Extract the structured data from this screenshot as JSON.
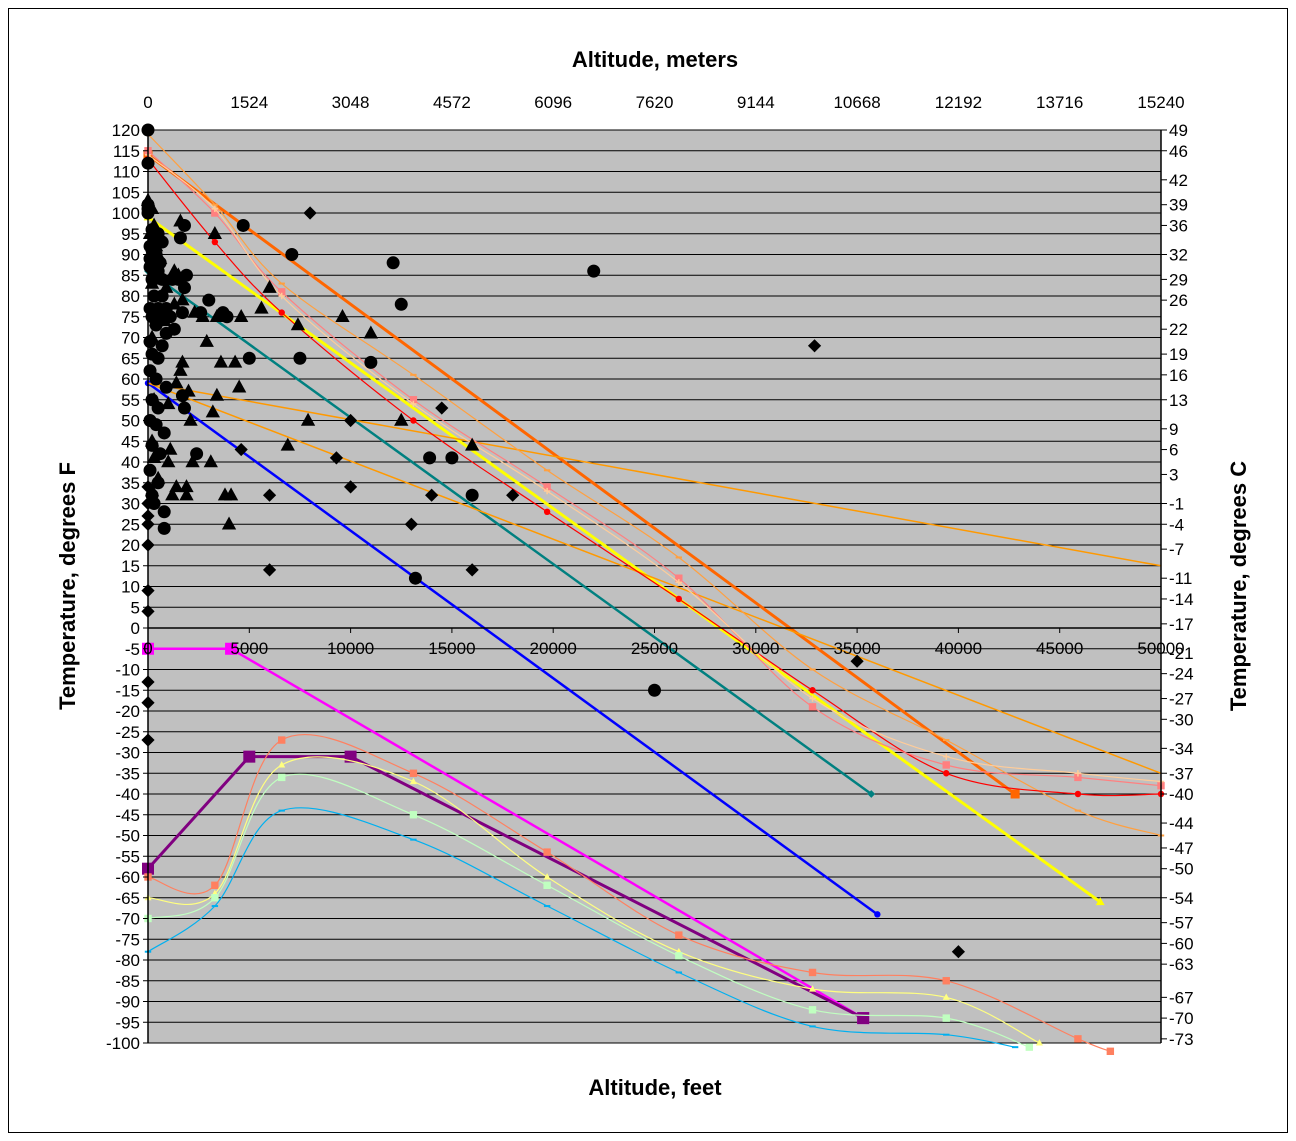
{
  "chart_data": {
    "type": "scatter",
    "title": "",
    "xlabel": "Altitude, feet",
    "x2label": "Altitude, meters",
    "ylabel": "Temperature, degrees F",
    "y2label": "Temperature, degrees C",
    "xlim": [
      0,
      50000
    ],
    "ylim": [
      -100,
      120
    ],
    "grid": true,
    "background": "#c0c0c0",
    "x_ticks": [
      "0",
      "5000",
      "10000",
      "15000",
      "20000",
      "25000",
      "30000",
      "35000",
      "40000",
      "45000",
      "50000"
    ],
    "x2_ticks": [
      "0",
      "1524",
      "3048",
      "4572",
      "6096",
      "7620",
      "9144",
      "10668",
      "12192",
      "13716",
      "15240"
    ],
    "y_ticks": [
      "120",
      "115",
      "110",
      "105",
      "100",
      "95",
      "90",
      "85",
      "80",
      "75",
      "70",
      "65",
      "60",
      "55",
      "50",
      "45",
      "40",
      "35",
      "30",
      "25",
      "20",
      "15",
      "10",
      "5",
      "0",
      "-5",
      "-10",
      "-15",
      "-20",
      "-25",
      "-30",
      "-35",
      "-40",
      "-45",
      "-50",
      "-55",
      "-60",
      "-65",
      "-70",
      "-75",
      "-80",
      "-85",
      "-90",
      "-95",
      "-100"
    ],
    "y2_ticks": [
      {
        "label": "49",
        "f": 120
      },
      {
        "label": "46",
        "f": 115
      },
      {
        "label": "42",
        "f": 108
      },
      {
        "label": "39",
        "f": 102
      },
      {
        "label": "36",
        "f": 97
      },
      {
        "label": "32",
        "f": 90
      },
      {
        "label": "29",
        "f": 84
      },
      {
        "label": "26",
        "f": 79
      },
      {
        "label": "22",
        "f": 72
      },
      {
        "label": "19",
        "f": 66
      },
      {
        "label": "16",
        "f": 61
      },
      {
        "label": "13",
        "f": 55
      },
      {
        "label": "9",
        "f": 48
      },
      {
        "label": "6",
        "f": 43
      },
      {
        "label": "3",
        "f": 37
      },
      {
        "label": "-1",
        "f": 30
      },
      {
        "label": "-4",
        "f": 25
      },
      {
        "label": "-7",
        "f": 19
      },
      {
        "label": "-11",
        "f": 12
      },
      {
        "label": "-14",
        "f": 7
      },
      {
        "label": "-17",
        "f": 1
      },
      {
        "label": "-21",
        "f": -6
      },
      {
        "label": "-24",
        "f": -11
      },
      {
        "label": "-27",
        "f": -17
      },
      {
        "label": "-30",
        "f": -22
      },
      {
        "label": "-34",
        "f": -29
      },
      {
        "label": "-37",
        "f": -35
      },
      {
        "label": "-40",
        "f": -40
      },
      {
        "label": "-44",
        "f": -47
      },
      {
        "label": "-47",
        "f": -53
      },
      {
        "label": "-50",
        "f": -58
      },
      {
        "label": "-54",
        "f": -65
      },
      {
        "label": "-57",
        "f": -71
      },
      {
        "label": "-60",
        "f": -76
      },
      {
        "label": "-63",
        "f": -81
      },
      {
        "label": "-67",
        "f": -89
      },
      {
        "label": "-70",
        "f": -94
      },
      {
        "label": "-73",
        "f": -99
      }
    ],
    "series": [
      {
        "color": "#ff6600",
        "width": 3,
        "marker": "square",
        "smooth": false,
        "x": [
          0,
          42800
        ],
        "y": [
          114,
          -40
        ]
      },
      {
        "color": "#ffff00",
        "width": 3,
        "marker": "triangle",
        "smooth": false,
        "x": [
          0,
          47000
        ],
        "y": [
          99,
          -66
        ]
      },
      {
        "color": "#008080",
        "width": 2.5,
        "marker": "diamond",
        "smooth": false,
        "x": [
          0,
          35700
        ],
        "y": [
          86,
          -40
        ]
      },
      {
        "color": "#0000ff",
        "width": 2.5,
        "marker": "circle",
        "smooth": false,
        "x": [
          0,
          36000
        ],
        "y": [
          59,
          -69
        ]
      },
      {
        "color": "#ff00ff",
        "width": 2.5,
        "marker": "square",
        "smooth": false,
        "x": [
          0,
          4100,
          35300
        ],
        "y": [
          -5,
          -5,
          -94
        ]
      },
      {
        "color": "#800080",
        "width": 3,
        "marker": "square",
        "smooth": false,
        "x": [
          0,
          5000,
          10000,
          35300
        ],
        "y": [
          -58,
          -31,
          -31,
          -94
        ]
      },
      {
        "color": "#ff9900",
        "width": 1.5,
        "marker": "none",
        "smooth": false,
        "x": [
          0,
          50000
        ],
        "y": [
          59,
          -35
        ]
      },
      {
        "color": "#ff9900",
        "width": 1.5,
        "marker": "none",
        "smooth": false,
        "x": [
          0,
          50000
        ],
        "y": [
          59,
          15
        ]
      },
      {
        "color": "#ffa040",
        "width": 1.2,
        "marker": "tick",
        "smooth": true,
        "x": [
          0,
          3300,
          6600,
          13100,
          19700,
          26200,
          32800,
          39400,
          45900,
          50000
        ],
        "y": [
          119,
          102,
          83,
          61,
          38,
          17,
          -10,
          -27,
          -44,
          -50
        ]
      },
      {
        "color": "#ff0000",
        "width": 1.2,
        "marker": "circle",
        "smooth": true,
        "x": [
          0,
          3300,
          6600,
          13100,
          19700,
          26200,
          32800,
          39400,
          45900,
          50000
        ],
        "y": [
          113,
          93,
          76,
          50,
          28,
          7,
          -15,
          -35,
          -40,
          -40
        ]
      },
      {
        "color": "#ff8080",
        "width": 1.2,
        "marker": "square",
        "smooth": true,
        "x": [
          0,
          3300,
          6600,
          13100,
          19700,
          26200,
          32800,
          39400,
          45900,
          50000
        ],
        "y": [
          115,
          100,
          81,
          55,
          34,
          12,
          -19,
          -33,
          -36,
          -38
        ]
      },
      {
        "color": "#ffcc99",
        "width": 1.2,
        "marker": "cross",
        "smooth": true,
        "x": [
          0,
          3300,
          6600,
          13100,
          19700,
          26200,
          32800,
          39400,
          45900,
          50000
        ],
        "y": [
          114,
          101,
          80,
          54,
          33,
          11,
          -17,
          -31,
          -35,
          -37
        ]
      },
      {
        "color": "#ff8060",
        "width": 1.2,
        "marker": "square",
        "smooth": true,
        "x": [
          0,
          3300,
          6600,
          13100,
          19700,
          26200,
          32800,
          39400,
          45900,
          47500
        ],
        "y": [
          -60,
          -62,
          -27,
          -35,
          -54,
          -74,
          -83,
          -85,
          -99,
          -102
        ]
      },
      {
        "color": "#ffff80",
        "width": 1.2,
        "marker": "triangle",
        "smooth": true,
        "x": [
          0,
          3300,
          6600,
          13100,
          19700,
          26200,
          32800,
          39400,
          44000
        ],
        "y": [
          -65,
          -64,
          -33,
          -37,
          -60,
          -78,
          -87,
          -89,
          -100
        ]
      },
      {
        "color": "#c0ffc0",
        "width": 1.2,
        "marker": "square",
        "smooth": true,
        "x": [
          0,
          3300,
          6600,
          13100,
          19700,
          26200,
          32800,
          39400,
          43500
        ],
        "y": [
          -70,
          -65,
          -36,
          -45,
          -62,
          -79,
          -92,
          -94,
          -101
        ]
      },
      {
        "color": "#00b0f0",
        "width": 1.2,
        "marker": "tick",
        "smooth": true,
        "x": [
          0,
          3300,
          6600,
          13100,
          19700,
          26200,
          32800,
          39400,
          42800
        ],
        "y": [
          -78,
          -67,
          -44,
          -51,
          -67,
          -83,
          -96,
          -98,
          -101
        ]
      }
    ],
    "scatter": {
      "circles": [
        [
          0,
          120
        ],
        [
          0,
          112
        ],
        [
          0,
          102
        ],
        [
          0,
          101
        ],
        [
          0,
          100
        ],
        [
          200,
          96
        ],
        [
          500,
          95
        ],
        [
          300,
          93
        ],
        [
          700,
          93
        ],
        [
          100,
          92
        ],
        [
          200,
          91
        ],
        [
          400,
          90
        ],
        [
          100,
          89
        ],
        [
          300,
          88
        ],
        [
          600,
          88
        ],
        [
          100,
          87
        ],
        [
          500,
          86
        ],
        [
          1900,
          85
        ],
        [
          200,
          84
        ],
        [
          700,
          84
        ],
        [
          1200,
          84
        ],
        [
          1500,
          84
        ],
        [
          1800,
          82
        ],
        [
          300,
          80
        ],
        [
          700,
          80
        ],
        [
          3000,
          79
        ],
        [
          100,
          77
        ],
        [
          500,
          77
        ],
        [
          900,
          77
        ],
        [
          1700,
          76
        ],
        [
          2600,
          76
        ],
        [
          3700,
          76
        ],
        [
          200,
          75
        ],
        [
          600,
          75
        ],
        [
          1100,
          75
        ],
        [
          1300,
          72
        ],
        [
          3900,
          75
        ],
        [
          400,
          73
        ],
        [
          900,
          71
        ],
        [
          100,
          69
        ],
        [
          700,
          68
        ],
        [
          200,
          66
        ],
        [
          500,
          65
        ],
        [
          5000,
          65
        ],
        [
          7500,
          65
        ],
        [
          11000,
          64
        ],
        [
          100,
          62
        ],
        [
          400,
          60
        ],
        [
          900,
          58
        ],
        [
          200,
          55
        ],
        [
          500,
          53
        ],
        [
          1700,
          56
        ],
        [
          1800,
          53
        ],
        [
          100,
          50
        ],
        [
          400,
          49
        ],
        [
          800,
          47
        ],
        [
          200,
          44
        ],
        [
          600,
          42
        ],
        [
          2400,
          42
        ],
        [
          100,
          38
        ],
        [
          500,
          35
        ],
        [
          200,
          32
        ],
        [
          300,
          30
        ],
        [
          800,
          28
        ],
        [
          800,
          24
        ],
        [
          4700,
          97
        ],
        [
          7100,
          90
        ],
        [
          12100,
          88
        ],
        [
          12500,
          78
        ],
        [
          22000,
          86
        ],
        [
          13900,
          41
        ],
        [
          15000,
          41
        ],
        [
          16000,
          32
        ],
        [
          13200,
          12
        ],
        [
          25000,
          -15
        ],
        [
          1600,
          94
        ],
        [
          1800,
          97
        ]
      ],
      "triangles": [
        [
          0,
          103
        ],
        [
          200,
          101
        ],
        [
          300,
          97
        ],
        [
          100,
          95
        ],
        [
          400,
          92
        ],
        [
          200,
          90
        ],
        [
          600,
          89
        ],
        [
          300,
          86
        ],
        [
          700,
          84
        ],
        [
          1300,
          86
        ],
        [
          1500,
          85
        ],
        [
          200,
          83
        ],
        [
          900,
          82
        ],
        [
          1700,
          79
        ],
        [
          1300,
          78
        ],
        [
          2300,
          76
        ],
        [
          400,
          74
        ],
        [
          800,
          74
        ],
        [
          2700,
          75
        ],
        [
          3400,
          75
        ],
        [
          4600,
          75
        ],
        [
          5600,
          77
        ],
        [
          7400,
          73
        ],
        [
          11000,
          71
        ],
        [
          200,
          70
        ],
        [
          2900,
          69
        ],
        [
          3600,
          64
        ],
        [
          4300,
          64
        ],
        [
          1700,
          64
        ],
        [
          1600,
          62
        ],
        [
          1400,
          59
        ],
        [
          4500,
          58
        ],
        [
          2000,
          57
        ],
        [
          3400,
          56
        ],
        [
          300,
          55
        ],
        [
          1000,
          54
        ],
        [
          2100,
          50
        ],
        [
          3200,
          52
        ],
        [
          7900,
          50
        ],
        [
          12500,
          50
        ],
        [
          16000,
          44
        ],
        [
          6900,
          44
        ],
        [
          200,
          45
        ],
        [
          1100,
          43
        ],
        [
          300,
          41
        ],
        [
          1000,
          40
        ],
        [
          2200,
          40
        ],
        [
          3100,
          40
        ],
        [
          500,
          36
        ],
        [
          1400,
          34
        ],
        [
          1900,
          34
        ],
        [
          200,
          33
        ],
        [
          3800,
          32
        ],
        [
          4100,
          32
        ],
        [
          1200,
          32
        ],
        [
          1900,
          32
        ],
        [
          4000,
          25
        ],
        [
          3300,
          95
        ],
        [
          1600,
          98
        ],
        [
          6000,
          82
        ],
        [
          9600,
          75
        ]
      ],
      "diamonds": [
        [
          0,
          34
        ],
        [
          0,
          30
        ],
        [
          0,
          27
        ],
        [
          0,
          25
        ],
        [
          0,
          20
        ],
        [
          0,
          9
        ],
        [
          0,
          4
        ],
        [
          0,
          -13
        ],
        [
          0,
          -18
        ],
        [
          0,
          -27
        ],
        [
          8000,
          100
        ],
        [
          4600,
          43
        ],
        [
          6000,
          32
        ],
        [
          6000,
          14
        ],
        [
          10000,
          50
        ],
        [
          9300,
          41
        ],
        [
          10000,
          34
        ],
        [
          13000,
          25
        ],
        [
          14000,
          32
        ],
        [
          14500,
          53
        ],
        [
          16000,
          14
        ],
        [
          18000,
          32
        ],
        [
          32900,
          68
        ],
        [
          35000,
          -8
        ],
        [
          40000,
          -78
        ]
      ]
    }
  }
}
